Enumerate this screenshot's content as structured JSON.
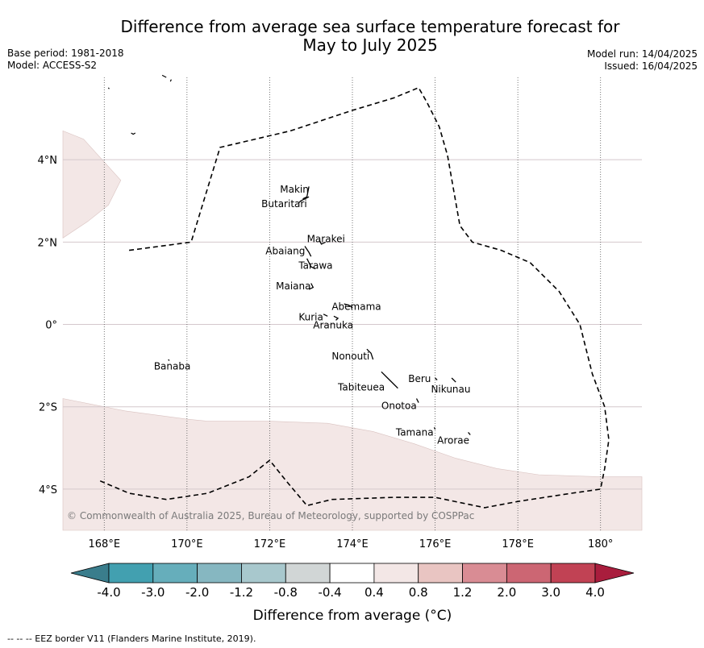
{
  "title_line1": "Difference from average sea surface temperature forecast for",
  "title_line2": "May to July 2025",
  "base_period": "Base period: 1981-2018",
  "model": "Model: ACCESS-S2",
  "model_run": "Model run: 14/04/2025",
  "issued": "Issued: 16/04/2025",
  "copyright": "© Commonwealth of Australia 2025, Bureau of Meteorology, supported by COSPPac",
  "footer": "-- -- -- EEZ border V11 (Flanders Marine Institute, 2019).",
  "map": {
    "lon_range": [
      167.0,
      181.0
    ],
    "lat_range": [
      -5.0,
      6.0
    ],
    "lon_ticks": [
      168,
      170,
      172,
      174,
      176,
      178,
      180
    ],
    "lon_tick_labels": [
      "168°E",
      "170°E",
      "172°E",
      "174°E",
      "176°E",
      "178°E",
      "180°"
    ],
    "lat_ticks": [
      4,
      2,
      0,
      -2,
      -4
    ],
    "lat_tick_labels": [
      "4°N",
      "2°N",
      "0°",
      "2°S",
      "4°S"
    ],
    "anomaly_fill_color": "#f3e7e6",
    "anomaly_regions": [
      {
        "level": "0.4 to 0.8",
        "lonlat": [
          [
            167.0,
            4.7
          ],
          [
            167.5,
            4.5
          ],
          [
            168.4,
            3.5
          ],
          [
            168.1,
            2.9
          ],
          [
            167.6,
            2.5
          ],
          [
            167.0,
            2.1
          ]
        ]
      },
      {
        "level": "0.4 to 0.8",
        "lonlat": [
          [
            167.0,
            -1.8
          ],
          [
            168.5,
            -2.1
          ],
          [
            170.0,
            -2.3
          ],
          [
            170.5,
            -2.35
          ],
          [
            171.0,
            -2.35
          ],
          [
            172.0,
            -2.35
          ],
          [
            173.4,
            -2.4
          ],
          [
            174.5,
            -2.6
          ],
          [
            175.5,
            -2.9
          ],
          [
            176.5,
            -3.25
          ],
          [
            177.5,
            -3.5
          ],
          [
            178.5,
            -3.65
          ],
          [
            180.0,
            -3.7
          ],
          [
            181.0,
            -3.7
          ],
          [
            181.0,
            -5.0
          ],
          [
            167.0,
            -5.0
          ]
        ]
      }
    ],
    "eez_border": [
      [
        168.6,
        1.8
      ],
      [
        170.1,
        2.0
      ],
      [
        170.8,
        4.3
      ],
      [
        172.5,
        4.7
      ],
      [
        174.0,
        5.2
      ],
      [
        175.0,
        5.5
      ],
      [
        175.6,
        5.75
      ],
      [
        175.8,
        5.4
      ],
      [
        176.1,
        4.8
      ],
      [
        176.3,
        4.1
      ],
      [
        176.6,
        2.4
      ],
      [
        176.9,
        2.0
      ],
      [
        177.6,
        1.8
      ],
      [
        178.3,
        1.5
      ],
      [
        179.0,
        0.8
      ],
      [
        179.5,
        0.0
      ],
      [
        179.8,
        -1.2
      ],
      [
        180.1,
        -2.0
      ],
      [
        180.2,
        -2.8
      ],
      [
        180.1,
        -3.5
      ],
      [
        180.0,
        -4.0
      ],
      [
        179.3,
        -4.1
      ],
      [
        178.0,
        -4.3
      ],
      [
        177.2,
        -4.45
      ],
      [
        176.0,
        -4.2
      ],
      [
        175.0,
        -4.2
      ],
      [
        173.5,
        -4.25
      ],
      [
        172.9,
        -4.4
      ],
      [
        172.4,
        -3.8
      ],
      [
        172.0,
        -3.3
      ],
      [
        171.5,
        -3.7
      ],
      [
        170.5,
        -4.1
      ],
      [
        169.5,
        -4.25
      ],
      [
        168.6,
        -4.1
      ],
      [
        167.9,
        -3.8
      ]
    ],
    "islands": [
      {
        "name": "Makin",
        "label_lonlat": [
          172.25,
          3.2
        ],
        "lonlat": [
          [
            172.95,
            3.35
          ],
          [
            172.9,
            3.1
          ],
          [
            172.8,
            3.05
          ]
        ]
      },
      {
        "name": "Butaritari",
        "label_lonlat": [
          171.8,
          2.85
        ],
        "lonlat": [
          [
            172.95,
            3.1
          ],
          [
            172.75,
            3.0
          ],
          [
            172.7,
            2.95
          ]
        ]
      },
      {
        "name": "Marakei",
        "label_lonlat": [
          172.9,
          2.0
        ],
        "lonlat": [
          [
            173.2,
            2.05
          ],
          [
            173.25,
            1.95
          ],
          [
            173.35,
            2.0
          ]
        ]
      },
      {
        "name": "Abaiang",
        "label_lonlat": [
          171.9,
          1.7
        ],
        "lonlat": [
          [
            172.85,
            1.9
          ],
          [
            172.95,
            1.75
          ],
          [
            173.0,
            1.65
          ]
        ]
      },
      {
        "name": "Tarawa",
        "label_lonlat": [
          172.7,
          1.35
        ],
        "lonlat": [
          [
            172.9,
            1.6
          ],
          [
            173.0,
            1.4
          ],
          [
            173.1,
            1.35
          ]
        ]
      },
      {
        "name": "Maiana",
        "label_lonlat": [
          172.15,
          0.85
        ],
        "lonlat": [
          [
            173.0,
            1.0
          ],
          [
            173.05,
            0.9
          ],
          [
            172.95,
            0.85
          ]
        ]
      },
      {
        "name": "Abemama",
        "label_lonlat": [
          173.5,
          0.35
        ],
        "lonlat": [
          [
            173.8,
            0.5
          ],
          [
            173.95,
            0.45
          ],
          [
            174.0,
            0.4
          ]
        ]
      },
      {
        "name": "Kuria",
        "label_lonlat": [
          172.7,
          0.1
        ],
        "lonlat": [
          [
            173.3,
            0.25
          ],
          [
            173.4,
            0.2
          ]
        ]
      },
      {
        "name": "Aranuka",
        "label_lonlat": [
          173.05,
          -0.1
        ],
        "lonlat": [
          [
            173.55,
            0.2
          ],
          [
            173.65,
            0.15
          ],
          [
            173.6,
            0.1
          ]
        ]
      },
      {
        "name": "Nonouti",
        "label_lonlat": [
          173.5,
          -0.85
        ],
        "lonlat": [
          [
            174.35,
            -0.6
          ],
          [
            174.45,
            -0.7
          ],
          [
            174.5,
            -0.85
          ]
        ]
      },
      {
        "name": "Banaba",
        "label_lonlat": [
          169.2,
          -1.1
        ],
        "lonlat": [
          [
            169.55,
            -0.85
          ],
          [
            169.57,
            -0.88
          ]
        ]
      },
      {
        "name": "Tabiteuea",
        "label_lonlat": [
          173.65,
          -1.6
        ],
        "lonlat": [
          [
            174.7,
            -1.15
          ],
          [
            174.85,
            -1.3
          ],
          [
            175.0,
            -1.45
          ],
          [
            175.1,
            -1.55
          ]
        ]
      },
      {
        "name": "Beru",
        "label_lonlat": [
          175.35,
          -1.4
        ],
        "lonlat": [
          [
            176.0,
            -1.3
          ],
          [
            176.05,
            -1.35
          ]
        ]
      },
      {
        "name": "Nikunau",
        "label_lonlat": [
          175.9,
          -1.65
        ],
        "lonlat": [
          [
            176.4,
            -1.3
          ],
          [
            176.5,
            -1.4
          ]
        ]
      },
      {
        "name": "Onotoa",
        "label_lonlat": [
          174.7,
          -2.05
        ],
        "lonlat": [
          [
            175.55,
            -1.8
          ],
          [
            175.6,
            -1.9
          ]
        ]
      },
      {
        "name": "Tamana",
        "label_lonlat": [
          175.05,
          -2.7
        ],
        "lonlat": [
          [
            175.98,
            -2.5
          ],
          [
            176.0,
            -2.55
          ]
        ]
      },
      {
        "name": "Arorae",
        "label_lonlat": [
          176.05,
          -2.9
        ],
        "lonlat": [
          [
            176.8,
            -2.62
          ],
          [
            176.85,
            -2.68
          ]
        ]
      }
    ],
    "extra_specks": [
      [
        [
          168.1,
          5.75
        ],
        [
          168.12,
          5.72
        ]
      ],
      [
        [
          168.65,
          4.65
        ],
        [
          168.7,
          4.62
        ],
        [
          168.75,
          4.65
        ]
      ],
      [
        [
          169.4,
          6.05
        ],
        [
          169.5,
          6.0
        ]
      ],
      [
        [
          169.6,
          5.9
        ],
        [
          169.62,
          5.95
        ]
      ]
    ]
  },
  "colorbar": {
    "tick_labels": [
      "-4.0",
      "-3.0",
      "-2.0",
      "-1.2",
      "-0.8",
      "-0.4",
      "0.4",
      "0.8",
      "1.2",
      "2.0",
      "3.0",
      "4.0"
    ],
    "colors": [
      "#3a7d8c",
      "#42a0b0",
      "#66aebb",
      "#86b7c1",
      "#a8c8cd",
      "#d1d6d6",
      "#ffffff",
      "#f3e7e6",
      "#e9c5c2",
      "#d98c94",
      "#cc6673",
      "#c14254",
      "#a91d3d"
    ],
    "label": "Difference from average (°C)"
  }
}
